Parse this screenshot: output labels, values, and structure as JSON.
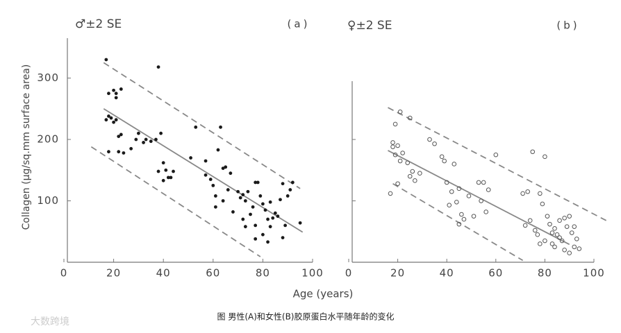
{
  "chart_data": [
    {
      "type": "scatter",
      "title": "♂±2 SE",
      "panel_label": "(a)",
      "ylabel": "Collagen (µg/sq.mm surface area)",
      "xlabel": "Age (years)",
      "xlim": [
        0,
        100
      ],
      "ylim": [
        0,
        365
      ],
      "xticks": [
        0,
        20,
        40,
        60,
        80,
        100
      ],
      "yticks": [
        100,
        200,
        300
      ],
      "show_ytick_labels": true,
      "color": "#1a1a1a",
      "marker": "filled",
      "x": [
        17,
        18,
        20,
        21,
        23,
        21,
        17,
        18,
        19,
        20,
        21,
        22,
        23,
        24,
        18,
        22,
        27,
        29,
        30,
        32,
        33,
        35,
        37,
        39,
        38,
        38,
        40,
        41,
        42,
        43,
        44,
        40,
        51,
        53,
        57,
        57,
        59,
        60,
        61,
        62,
        63,
        64,
        65,
        61,
        64,
        66,
        67,
        68,
        70,
        71,
        72,
        73,
        74,
        72,
        73,
        75,
        76,
        77,
        77,
        78,
        79,
        80,
        81,
        82,
        83,
        84,
        83,
        82,
        77,
        86,
        87,
        88,
        89,
        90,
        91,
        92,
        95,
        88,
        80,
        85
      ],
      "values": [
        330,
        275,
        280,
        268,
        282,
        275,
        232,
        238,
        235,
        228,
        232,
        205,
        208,
        178,
        180,
        180,
        185,
        200,
        210,
        195,
        200,
        197,
        200,
        210,
        318,
        148,
        162,
        150,
        138,
        138,
        148,
        133,
        170,
        220,
        142,
        165,
        135,
        125,
        108,
        183,
        220,
        153,
        155,
        90,
        100,
        118,
        145,
        82,
        115,
        105,
        110,
        100,
        115,
        70,
        58,
        78,
        90,
        60,
        130,
        130,
        108,
        95,
        85,
        70,
        58,
        72,
        98,
        33,
        38,
        75,
        102,
        128,
        60,
        108,
        118,
        130,
        64,
        40,
        45,
        80
      ],
      "lines": [
        {
          "x": [
            16,
            96
          ],
          "values": [
            250,
            49
          ],
          "dashed": false
        },
        {
          "x": [
            16,
            95
          ],
          "values": [
            325,
            120
          ],
          "dashed": true
        },
        {
          "x": [
            11,
            79
          ],
          "values": [
            188,
            9
          ],
          "dashed": true
        }
      ]
    },
    {
      "type": "scatter",
      "title": "♀±2 SE",
      "panel_label": "(b)",
      "xlim": [
        0,
        100
      ],
      "ylim": [
        0,
        295
      ],
      "xticks": [
        0,
        20,
        40,
        60,
        80,
        100
      ],
      "yticks": [
        100,
        200
      ],
      "show_ytick_labels": false,
      "color": "#555555",
      "marker": "hollow",
      "x": [
        17,
        18,
        18,
        19,
        19,
        20,
        21,
        20,
        21,
        22,
        24,
        25,
        26,
        27,
        25,
        29,
        33,
        35,
        38,
        39,
        40,
        41,
        43,
        42,
        44,
        45,
        46,
        47,
        45,
        49,
        51,
        53,
        54,
        55,
        56,
        57,
        60,
        71,
        73,
        72,
        74,
        75,
        76,
        77,
        78,
        79,
        80,
        78,
        80,
        81,
        82,
        83,
        84,
        85,
        86,
        87,
        88,
        89,
        90,
        91,
        92,
        93,
        94,
        88,
        90,
        84,
        86,
        83,
        92
      ],
      "values": [
        112,
        195,
        188,
        225,
        175,
        190,
        165,
        128,
        245,
        178,
        162,
        140,
        148,
        133,
        235,
        145,
        200,
        193,
        172,
        165,
        130,
        93,
        160,
        115,
        98,
        120,
        78,
        70,
        62,
        108,
        75,
        130,
        100,
        130,
        82,
        118,
        175,
        112,
        115,
        60,
        68,
        180,
        52,
        45,
        112,
        95,
        172,
        30,
        35,
        75,
        62,
        48,
        55,
        45,
        40,
        35,
        72,
        58,
        75,
        48,
        25,
        38,
        22,
        20,
        15,
        25,
        68,
        30,
        58
      ],
      "lines": [
        {
          "x": [
            16,
            90
          ],
          "values": [
            182,
            29
          ],
          "dashed": false
        },
        {
          "x": [
            16,
            105
          ],
          "values": [
            252,
            68
          ],
          "dashed": true
        },
        {
          "x": [
            18,
            71
          ],
          "values": [
            128,
            3
          ],
          "dashed": true
        }
      ]
    }
  ],
  "caption": "图 男性(A)和女性(B)胶原蛋白水平随年龄的变化",
  "watermark": "大数跨境"
}
